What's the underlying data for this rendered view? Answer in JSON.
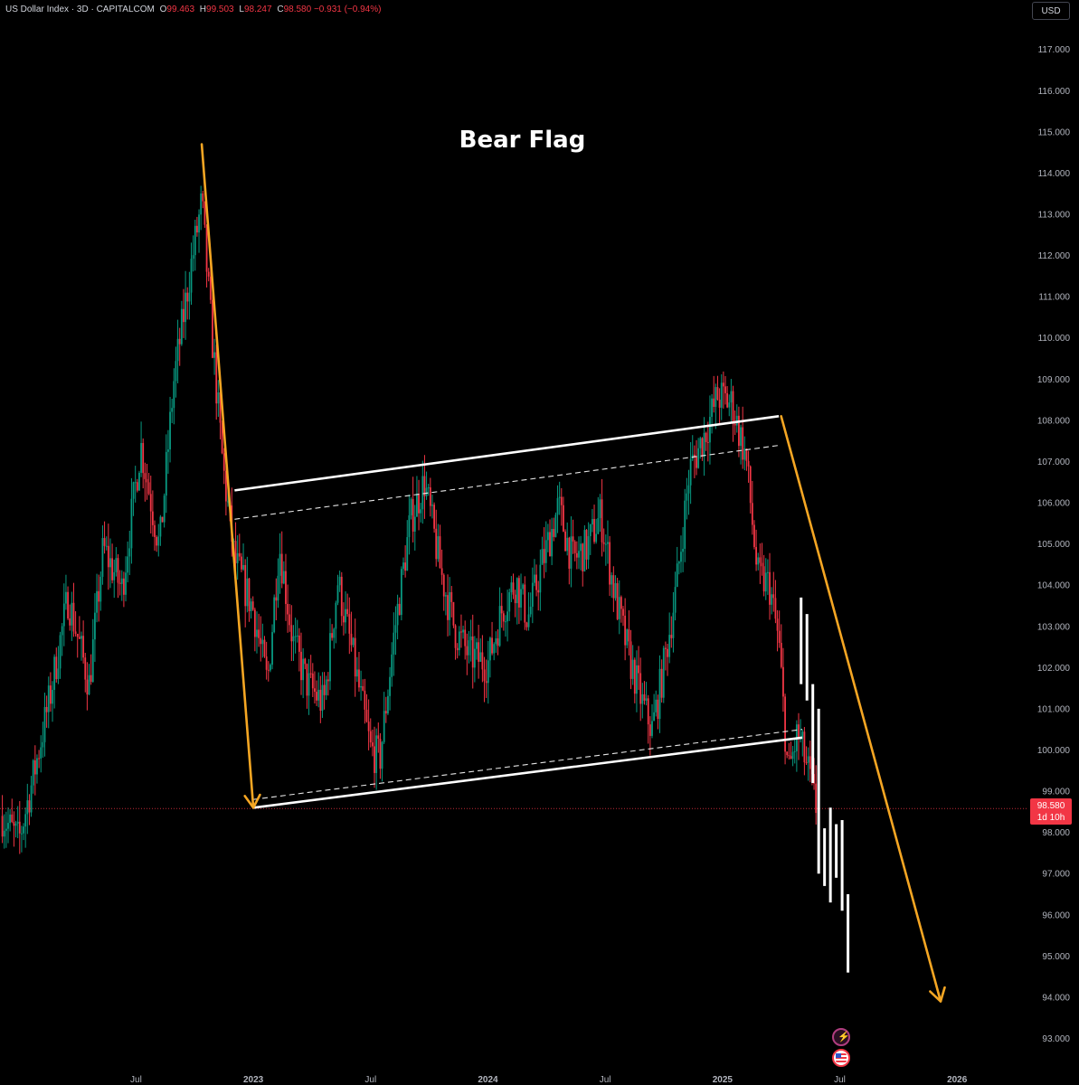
{
  "header": {
    "symbol": "US Dollar Index · 3D · CAPITALCOM",
    "open_label": "O",
    "open": "99.463",
    "high_label": "H",
    "high": "99.503",
    "low_label": "L",
    "low": "98.247",
    "close_label": "C",
    "close": "98.580",
    "change": "−0.931 (−0.94%)"
  },
  "currency": "USD",
  "price_tag": {
    "price": "98.580",
    "countdown": "1d 10h"
  },
  "chart_data": {
    "type": "candlestick",
    "title": "Bear Flag",
    "y_ticks": [
      "93.000",
      "94.000",
      "95.000",
      "96.000",
      "97.000",
      "98.000",
      "99.000",
      "100.000",
      "101.000",
      "102.000",
      "103.000",
      "104.000",
      "105.000",
      "106.000",
      "107.000",
      "108.000",
      "109.000",
      "110.000",
      "111.000",
      "112.000",
      "113.000",
      "114.000",
      "115.000",
      "116.000",
      "117.000"
    ],
    "ylim": [
      92.2,
      118.2
    ],
    "x_ticks": [
      {
        "label": "Jul",
        "t": 2022.5
      },
      {
        "label": "2023",
        "t": 2023.0
      },
      {
        "label": "Jul",
        "t": 2023.5
      },
      {
        "label": "2024",
        "t": 2024.0
      },
      {
        "label": "Jul",
        "t": 2024.5
      },
      {
        "label": "2025",
        "t": 2025.0
      },
      {
        "label": "Jul",
        "t": 2025.5
      },
      {
        "label": "2026",
        "t": 2026.0
      }
    ],
    "xlim": [
      2021.92,
      2026.3
    ],
    "close_path": [
      [
        2021.93,
        98.4
      ],
      [
        2022.0,
        97.8
      ],
      [
        2022.06,
        99.3
      ],
      [
        2022.13,
        101.2
      ],
      [
        2022.21,
        103.7
      ],
      [
        2022.3,
        101.6
      ],
      [
        2022.36,
        104.9
      ],
      [
        2022.44,
        103.9
      ],
      [
        2022.52,
        107.4
      ],
      [
        2022.6,
        104.9
      ],
      [
        2022.66,
        108.9
      ],
      [
        2022.73,
        111.6
      ],
      [
        2022.78,
        113.3
      ],
      [
        2022.82,
        110.3
      ],
      [
        2022.87,
        106.9
      ],
      [
        2022.92,
        104.6
      ],
      [
        2023.0,
        103.4
      ],
      [
        2023.06,
        101.6
      ],
      [
        2023.11,
        105.0
      ],
      [
        2023.17,
        102.6
      ],
      [
        2023.23,
        101.6
      ],
      [
        2023.3,
        101.1
      ],
      [
        2023.36,
        104.1
      ],
      [
        2023.42,
        102.4
      ],
      [
        2023.5,
        100.0
      ],
      [
        2023.54,
        99.8
      ],
      [
        2023.6,
        102.8
      ],
      [
        2023.67,
        105.6
      ],
      [
        2023.73,
        106.5
      ],
      [
        2023.8,
        104.3
      ],
      [
        2023.86,
        102.9
      ],
      [
        2023.92,
        102.3
      ],
      [
        2024.0,
        102.1
      ],
      [
        2024.06,
        103.4
      ],
      [
        2024.12,
        104.1
      ],
      [
        2024.17,
        103.2
      ],
      [
        2024.23,
        104.5
      ],
      [
        2024.3,
        105.9
      ],
      [
        2024.36,
        104.6
      ],
      [
        2024.42,
        104.9
      ],
      [
        2024.48,
        105.7
      ],
      [
        2024.54,
        103.8
      ],
      [
        2024.6,
        102.3
      ],
      [
        2024.66,
        101.1
      ],
      [
        2024.7,
        100.5
      ],
      [
        2024.74,
        101.7
      ],
      [
        2024.8,
        103.8
      ],
      [
        2024.86,
        106.8
      ],
      [
        2024.92,
        107.6
      ],
      [
        2024.98,
        108.6
      ],
      [
        2025.04,
        108.4
      ],
      [
        2025.1,
        107.1
      ],
      [
        2025.15,
        104.2
      ],
      [
        2025.2,
        104.0
      ],
      [
        2025.24,
        102.6
      ],
      [
        2025.28,
        99.4
      ],
      [
        2025.32,
        100.4
      ],
      [
        2025.36,
        99.6
      ],
      [
        2025.4,
        98.58
      ]
    ],
    "projection_bars": [
      {
        "t": 2025.335,
        "high": 103.7,
        "low": 101.6
      },
      {
        "t": 2025.36,
        "high": 103.3,
        "low": 101.2
      },
      {
        "t": 2025.385,
        "high": 101.6,
        "low": 99.2
      },
      {
        "t": 2025.41,
        "high": 101.0,
        "low": 97.0
      },
      {
        "t": 2025.435,
        "high": 98.1,
        "low": 96.7
      },
      {
        "t": 2025.46,
        "high": 98.6,
        "low": 96.3
      },
      {
        "t": 2025.485,
        "high": 98.2,
        "low": 96.9
      },
      {
        "t": 2025.51,
        "high": 98.3,
        "low": 96.1
      },
      {
        "t": 2025.535,
        "high": 96.5,
        "low": 94.6
      }
    ],
    "trendlines": {
      "flag_upper": {
        "from": [
          2022.92,
          106.3
        ],
        "to": [
          2025.24,
          108.1
        ],
        "style": "solid"
      },
      "flag_upper_mid": {
        "from": [
          2022.92,
          105.6
        ],
        "to": [
          2025.25,
          107.4
        ],
        "style": "dashed"
      },
      "flag_lower": {
        "from": [
          2023.0,
          98.6
        ],
        "to": [
          2025.34,
          100.3
        ],
        "style": "solid"
      },
      "flag_lower_mid": {
        "from": [
          2023.0,
          98.8
        ],
        "to": [
          2025.34,
          100.5
        ],
        "style": "dashed"
      },
      "current_price": {
        "y": 98.58,
        "style": "dotted"
      }
    },
    "arrows": [
      {
        "name": "pole-arrow",
        "from": [
          2022.78,
          114.7
        ],
        "to": [
          2023.0,
          98.6
        ],
        "color": "#f5a623"
      },
      {
        "name": "target-arrow",
        "from": [
          2025.25,
          108.1
        ],
        "to": [
          2025.93,
          93.9
        ],
        "color": "#f5a623"
      }
    ],
    "colors": {
      "up": "#089981",
      "down": "#f23645",
      "flag_lines": "#ffffff",
      "arrows": "#f5a623",
      "projection": "#ffffff",
      "background": "#000000"
    }
  }
}
